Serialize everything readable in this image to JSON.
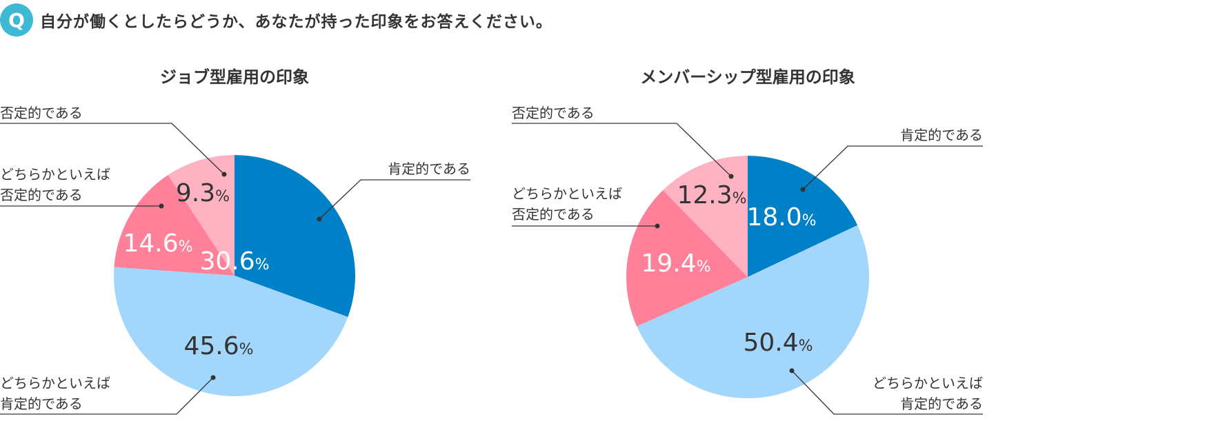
{
  "question": {
    "badge": "Q",
    "text": "自分が働くとしたらどうか、あなたが持った印象をお答えください。"
  },
  "colors": {
    "affirmative": "#0080c6",
    "somewhat_affirmative": "#a3d6fb",
    "somewhat_negative": "#ff8199",
    "negative": "#ffb3c2",
    "badge": "#3db9d3",
    "leader": "#333333"
  },
  "chart_data": [
    {
      "type": "pie",
      "title": "ジョブ型雇用の印象",
      "slices": [
        {
          "label": "肯定的である",
          "value": 30.6,
          "value_text": "30.6",
          "color": "#0080c6"
        },
        {
          "label": "どちらかといえば\n肯定的である",
          "value": 45.6,
          "value_text": "45.6",
          "color": "#a3d6fb"
        },
        {
          "label": "どちらかといえば\n否定的である",
          "value": 14.6,
          "value_text": "14.6",
          "color": "#ff8199"
        },
        {
          "label": "否定的である",
          "value": 9.3,
          "value_text": "9.3",
          "color": "#ffb3c2"
        }
      ],
      "unit": "%"
    },
    {
      "type": "pie",
      "title": "メンバーシップ型雇用の印象",
      "slices": [
        {
          "label": "肯定的である",
          "value": 18.0,
          "value_text": "18.0",
          "color": "#0080c6"
        },
        {
          "label": "どちらかといえば\n肯定的である",
          "value": 50.4,
          "value_text": "50.4",
          "color": "#a3d6fb"
        },
        {
          "label": "どちらかといえば\n否定的である",
          "value": 19.4,
          "value_text": "19.4",
          "color": "#ff8199"
        },
        {
          "label": "否定的である",
          "value": 12.3,
          "value_text": "12.3",
          "color": "#ffb3c2"
        }
      ],
      "unit": "%"
    }
  ]
}
